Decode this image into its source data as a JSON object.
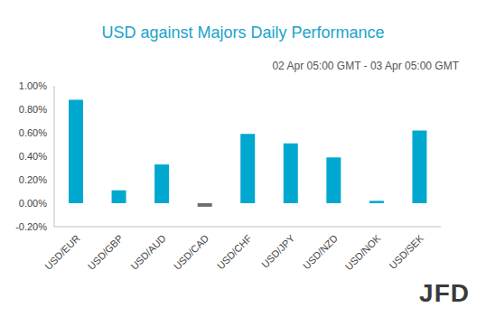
{
  "chart_data": {
    "type": "bar",
    "title": "USD against Majors Daily Performance",
    "subtitle": "02 Apr 05:00 GMT - 03 Apr 05:00 GMT",
    "categories": [
      "USD/EUR",
      "USD/GBP",
      "USD/AUD",
      "USD/CAD",
      "USD/CHF",
      "USD/JPY",
      "USD/NZD",
      "USD/NOK",
      "USD/SEK"
    ],
    "values": [
      0.88,
      0.11,
      0.33,
      -0.03,
      0.59,
      0.51,
      0.39,
      0.02,
      0.62
    ],
    "colors": [
      "#00a8d0",
      "#00a8d0",
      "#00a8d0",
      "#6e6e6e",
      "#00a8d0",
      "#00a8d0",
      "#00a8d0",
      "#00a8d0",
      "#00a8d0"
    ],
    "ylim": [
      -0.2,
      1.0
    ],
    "yticks": [
      {
        "value": -0.2,
        "label": "-0.20%"
      },
      {
        "value": 0,
        "label": "0.00%"
      },
      {
        "value": 0.2,
        "label": "0.20%"
      },
      {
        "value": 0.4,
        "label": "0.40%"
      },
      {
        "value": 0.6,
        "label": "0.60%"
      },
      {
        "value": 0.8,
        "label": "0.80%"
      },
      {
        "value": 1.0,
        "label": "1.00%"
      }
    ],
    "grid": false,
    "annotations": [
      "JFD"
    ]
  }
}
